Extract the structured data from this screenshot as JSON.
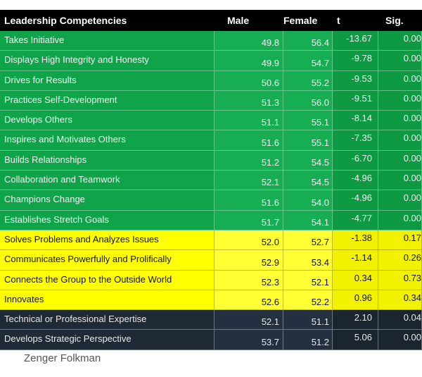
{
  "header": {
    "col0": "Leadership Competencies",
    "col1": "Male",
    "col2": "Female",
    "col3": "t",
    "col4": "Sig."
  },
  "rows": [
    {
      "name": "Takes Initiative",
      "male": "49.8",
      "female": "56.4",
      "t": "-13.67",
      "sig": "0.00",
      "band": "green"
    },
    {
      "name": "Displays High Integrity and Honesty",
      "male": "49.9",
      "female": "54.7",
      "t": "-9.78",
      "sig": "0.00",
      "band": "green"
    },
    {
      "name": "Drives for Results",
      "male": "50.6",
      "female": "55.2",
      "t": "-9.53",
      "sig": "0.00",
      "band": "green"
    },
    {
      "name": "Practices Self-Development",
      "male": "51.3",
      "female": "56.0",
      "t": "-9.51",
      "sig": "0.00",
      "band": "green"
    },
    {
      "name": "Develops Others",
      "male": "51.1",
      "female": "55.1",
      "t": "-8.14",
      "sig": "0.00",
      "band": "green"
    },
    {
      "name": "Inspires and Motivates Others",
      "male": "51.6",
      "female": "55.1",
      "t": "-7.35",
      "sig": "0.00",
      "band": "green"
    },
    {
      "name": "Builds Relationships",
      "male": "51.2",
      "female": "54.5",
      "t": "-6.70",
      "sig": "0.00",
      "band": "green"
    },
    {
      "name": "Collaboration and Teamwork",
      "male": "52.1",
      "female": "54.5",
      "t": "-4.96",
      "sig": "0.00",
      "band": "green"
    },
    {
      "name": "Champions Change",
      "male": "51.6",
      "female": "54.0",
      "t": "-4.96",
      "sig": "0.00",
      "band": "green"
    },
    {
      "name": "Establishes Stretch Goals",
      "male": "51.7",
      "female": "54.1",
      "t": "-4.77",
      "sig": "0.00",
      "band": "green"
    },
    {
      "name": "Solves Problems and Analyzes Issues",
      "male": "52.0",
      "female": "52.7",
      "t": "-1.38",
      "sig": "0.17",
      "band": "yellow"
    },
    {
      "name": "Communicates Powerfully and Prolifically",
      "male": "52.9",
      "female": "53.4",
      "t": "-1.14",
      "sig": "0.26",
      "band": "yellow"
    },
    {
      "name": "Connects the Group to the Outside World",
      "male": "52.3",
      "female": "52.1",
      "t": "0.34",
      "sig": "0.73",
      "band": "yellow"
    },
    {
      "name": "Innovates",
      "male": "52.6",
      "female": "52.2",
      "t": "0.96",
      "sig": "0.34",
      "band": "yellow"
    },
    {
      "name": "Technical or Professional Expertise",
      "male": "52.1",
      "female": "51.1",
      "t": "2.10",
      "sig": "0.04",
      "band": "dark"
    },
    {
      "name": "Develops Strategic Perspective",
      "male": "53.7",
      "female": "51.2",
      "t": "5.06",
      "sig": "0.00",
      "band": "dark"
    }
  ],
  "caption": "Zenger Folkman",
  "colors": {
    "green": "#10a44a",
    "yellow": "#ffff00",
    "dark": "#1f2a36",
    "header": "#000000"
  }
}
